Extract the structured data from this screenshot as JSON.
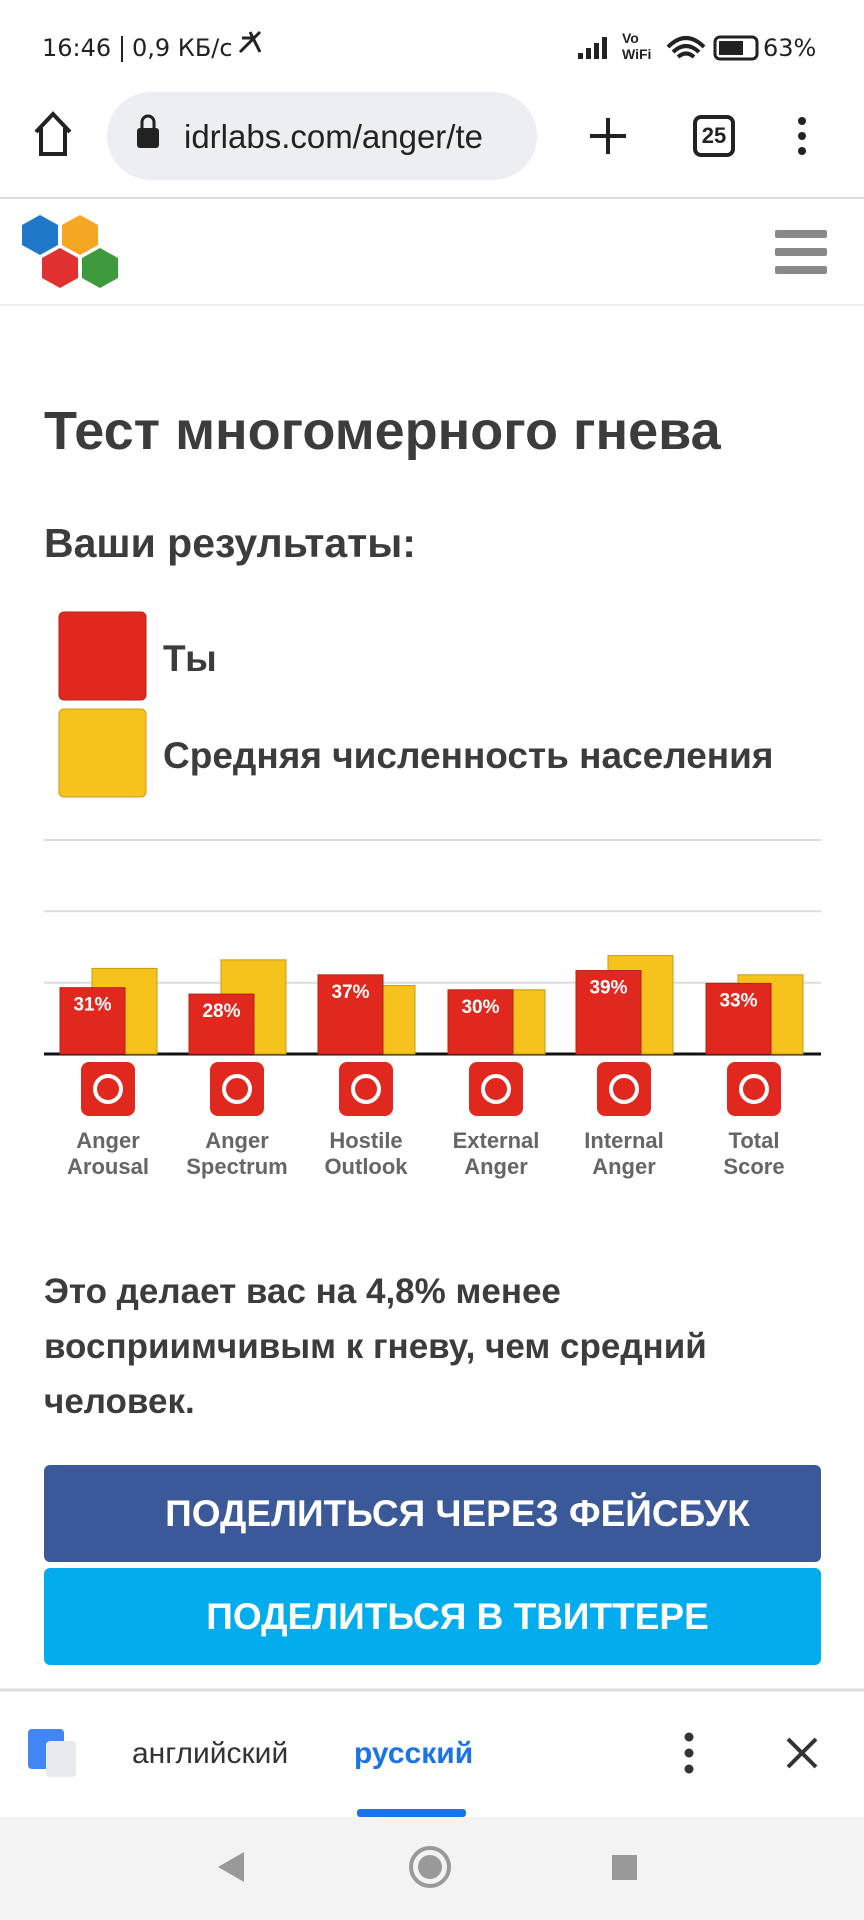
{
  "status_bar": {
    "time": "16:46",
    "network_speed": "0,9 КБ/с",
    "vowifi": [
      "Vo",
      "WiFi"
    ],
    "battery": "63%"
  },
  "browser": {
    "url": "idrlabs.com/anger/te",
    "tab_count": "25"
  },
  "page": {
    "title": "Тест многомерного гнева",
    "results_heading": "Ваши результаты:",
    "summary": "Это делает вас на 4,8% менее восприимчивым к гневу, чем средний человек.",
    "share_facebook": "ПОДЕЛИТЬСЯ ЧЕРЕЗ ФЕЙСБУК",
    "share_twitter": "ПОДЕЛИТЬСЯ В ТВИТТЕРЕ"
  },
  "chart_data": {
    "type": "bar",
    "categories": [
      "Anger Arousal",
      "Anger Spectrum",
      "Hostile Outlook",
      "External Anger",
      "Internal Anger",
      "Total Score"
    ],
    "series": [
      {
        "name": "Ты",
        "color": "#e0281e",
        "values": [
          31,
          28,
          37,
          30,
          39,
          33
        ],
        "value_labels": [
          "31%",
          "28%",
          "37%",
          "30%",
          "39%",
          "33%"
        ]
      },
      {
        "name": "Средняя численность населения",
        "color": "#f6c21c",
        "values": [
          40,
          44,
          32,
          30,
          46,
          37
        ]
      }
    ],
    "ylim": [
      0,
      100
    ],
    "yticks": [
      0,
      33.3,
      66.7,
      100
    ],
    "grid": true
  },
  "translate_bar": {
    "source_language": "английский",
    "target_language": "русский"
  }
}
